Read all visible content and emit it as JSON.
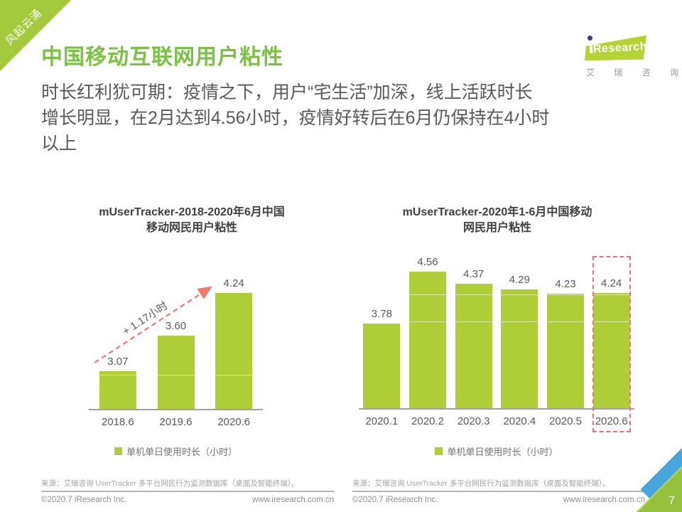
{
  "ribbon": {
    "label": "风起云涌"
  },
  "header": {
    "title": "中国移动互联网用户粘性",
    "subtitle": "时长红利犹可期：疫情之下，用户“宅生活”加深，线上活跃时长\n增长明显，在2月达到4.56小时，疫情好转后在6月仍保持在4小时\n以上"
  },
  "logo": {
    "brand_i": "i",
    "brand": "Research",
    "subtext": "艾 瑞 咨 询"
  },
  "chart_data": [
    {
      "type": "bar",
      "title": "mUserTracker-2018-2020年6月中国\n移动网民用户粘性",
      "categories": [
        "2018.6",
        "2019.6",
        "2020.6"
      ],
      "values": [
        3.07,
        3.6,
        4.24
      ],
      "value_labels": [
        "3.07",
        "3.60",
        "4.24"
      ],
      "legend": "单机单日使用时长（小时）",
      "annotation": "+ 1.17小时",
      "xlabel": "",
      "ylabel": "",
      "ylim": [
        2.5,
        4.8
      ],
      "grid_values": [
        3.0
      ],
      "grid": false,
      "legend_position": "bottom"
    },
    {
      "type": "bar",
      "title": "mUserTracker-2020年1-6月中国移动\n网民用户粘性",
      "categories": [
        "2020.1",
        "2020.2",
        "2020.3",
        "2020.4",
        "2020.5",
        "2020.6"
      ],
      "values": [
        3.78,
        4.56,
        4.37,
        4.29,
        4.23,
        4.24
      ],
      "value_labels": [
        "3.78",
        "4.56",
        "4.37",
        "4.29",
        "4.23",
        "4.24"
      ],
      "legend": "单机单日使用时长（小时）",
      "highlight_index": 5,
      "highlight_category": "2020.6",
      "xlabel": "",
      "ylabel": "",
      "ylim": [
        2.5,
        4.9
      ],
      "grid_values": [
        3.8,
        4.2
      ],
      "grid": false,
      "legend_position": "bottom"
    }
  ],
  "footers": {
    "left": {
      "source": "来源：艾瑞咨询 UserTracker 多平台网民行为监测数据库（桌面及智能终端）。",
      "copyright": "©2020.7 iResearch Inc.",
      "website": "www.iresearch.com.cn"
    },
    "right": {
      "source": "来源：艾瑞咨询 UserTracker 多平台网民行为监测数据库（桌面及智能终端）。",
      "copyright": "©2020.7 iResearch Inc.",
      "website": "www.iresearch.com.cn"
    }
  },
  "page": {
    "number": "7"
  },
  "colors": {
    "bar_green": "#aecd36",
    "title_green": "#7cc242",
    "ribbon_green": "#a2ca3c",
    "logo_green": "#b5d334",
    "logo_dot_navy": "#2b4a77",
    "arrow_red": "#f2776f",
    "highlight_red": "#ea7272",
    "corner_blue": "#47a7dc",
    "corner_lime": "#c0d64d",
    "corner_green": "#95c13d",
    "text_gray": "#595959",
    "axis_gray": "#a2a2a2"
  }
}
